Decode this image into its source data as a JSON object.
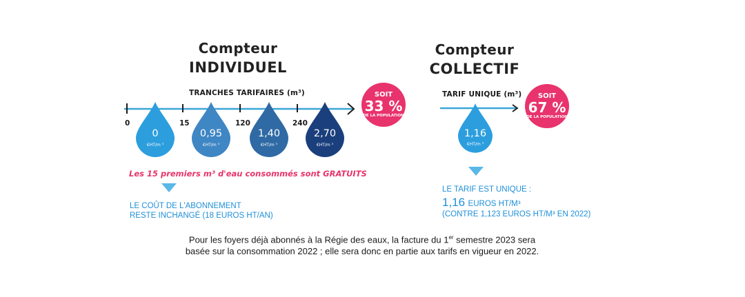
{
  "individuel": {
    "title_line1": "Compteur",
    "title_line2": "INDIVIDUEL",
    "axis_label": "TRANCHES TARIFAIRES (m³)",
    "ticks": [
      "0",
      "15",
      "120",
      "240"
    ],
    "drops": [
      {
        "value": "0",
        "unit": "€HT/m ³",
        "color": "#2c9ede"
      },
      {
        "value": "0,95",
        "unit": "€HT/m ³",
        "color": "#3f86c4"
      },
      {
        "value": "1,40",
        "unit": "€HT/m ³",
        "color": "#2f6aa4"
      },
      {
        "value": "2,70",
        "unit": "€HT/m ³",
        "color": "#1a3f7c"
      }
    ],
    "badge": {
      "line1": "SOIT",
      "line2": "33 %",
      "line3": "DE LA POPULATION"
    },
    "note": "Les 15 premiers m³ d'eau consommés sont GRATUITS",
    "subscription_line1": "LE COÛT DE L'ABONNEMENT",
    "subscription_line2": "RESTE INCHANGÉ (18 EUROS HT/AN)"
  },
  "collectif": {
    "title_line1": "Compteur",
    "title_line2": "COLLECTIF",
    "axis_label": "TARIF UNIQUE (m³)",
    "drop": {
      "value": "1,16",
      "unit": "€HT/m ³",
      "color": "#2c9ede"
    },
    "badge": {
      "line1": "SOIT",
      "line2": "67 %",
      "line3": "DE LA POPULATION"
    },
    "unique_label": "LE TARIF EST UNIQUE :",
    "price_big": "1,16",
    "price_unit": "EUROS HT/M³",
    "price_compare": "(CONTRE 1,123 EUROS HT/M³ EN 2022)"
  },
  "footer": {
    "line1_a": "Pour les foyers déjà abonnés à la Régie des eaux, la facture du 1",
    "line1_sup": "er",
    "line1_b": " semestre 2023 sera",
    "line2": "basée sur la consommation 2022 ; elle sera donc en partie aux tarifs en vigueur en 2022."
  },
  "colors": {
    "accent_pink": "#e8336c",
    "accent_blue": "#1f8fd9",
    "line_blue": "#3aa6d9"
  }
}
